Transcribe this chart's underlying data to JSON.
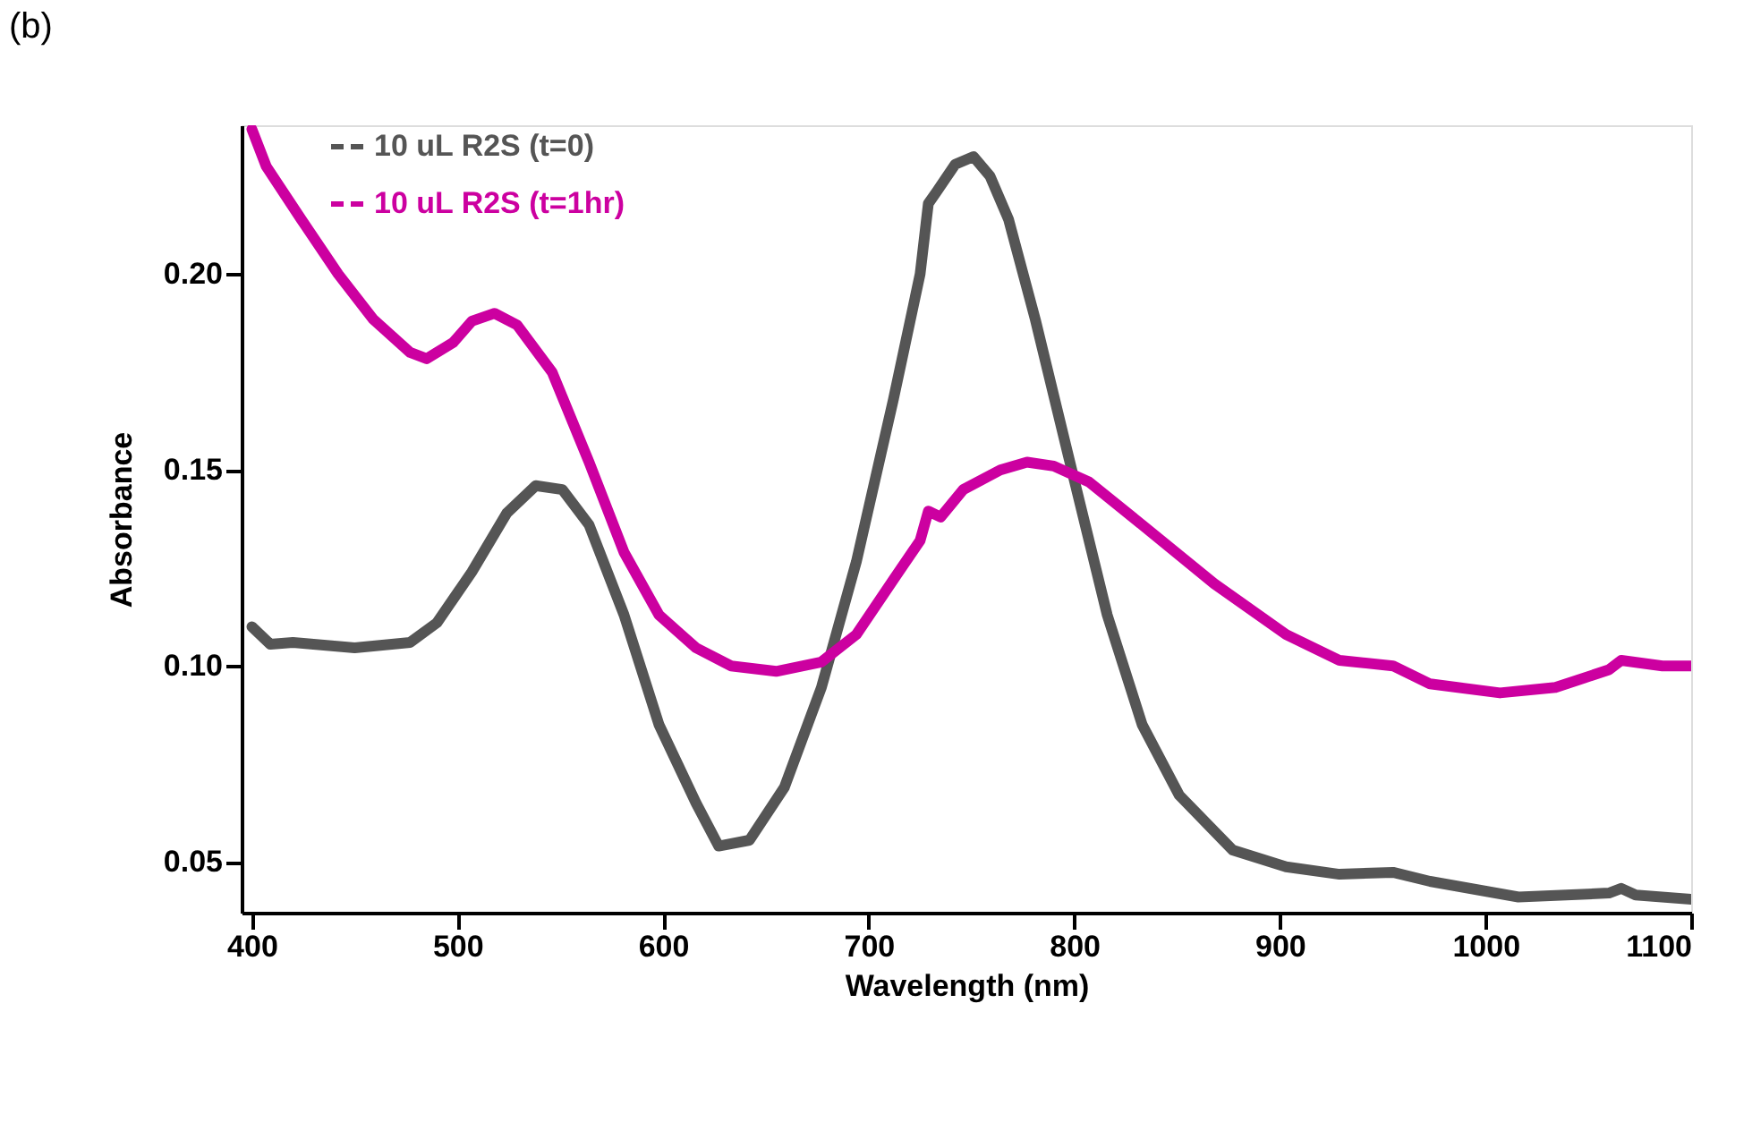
{
  "chart_data": {
    "type": "line",
    "xlabel": "Wavelength (nm)",
    "ylabel": "Absorbance",
    "annotations": [
      "(b)"
    ],
    "xlim": [
      395,
      1100
    ],
    "xticks": [
      400,
      500,
      600,
      700,
      800,
      900,
      1000,
      1100
    ],
    "ylim": [
      0.037,
      0.238
    ],
    "yticks": [
      0.05,
      {
        "value": 0.1,
        "label": "0.10"
      },
      0.15,
      {
        "value": 0.2,
        "label": "0.20"
      }
    ],
    "grid": false,
    "legend": "top left",
    "marker": "none",
    "line_style": "solid",
    "series": [
      {
        "name": "10 uL R2S (t=0)",
        "color": "#555555",
        "x": [
          400,
          409,
          420,
          450,
          477,
          490,
          507,
          524,
          538,
          551,
          564,
          581,
          598,
          616,
          627,
          642,
          659,
          677,
          694,
          712,
          725,
          729,
          733,
          742,
          751,
          759,
          768,
          781,
          799,
          816,
          833,
          851,
          877,
          903,
          929,
          955,
          973,
          1016,
          1060,
          1066,
          1073,
          1100
        ],
        "values": [
          0.11,
          0.1055,
          0.106,
          0.1046,
          0.106,
          0.111,
          0.124,
          0.139,
          0.146,
          0.145,
          0.136,
          0.113,
          0.085,
          0.065,
          0.054,
          0.0555,
          0.069,
          0.0945,
          0.1266,
          0.168,
          0.2,
          0.218,
          0.221,
          0.228,
          0.23,
          0.225,
          0.214,
          0.1885,
          0.1495,
          0.113,
          0.085,
          0.067,
          0.053,
          0.0487,
          0.0468,
          0.0473,
          0.045,
          0.041,
          0.042,
          0.0432,
          0.0415,
          0.0404
        ]
      },
      {
        "name": "10 uL R2S (t=1hr)",
        "color": "#cc00a0",
        "x": [
          400,
          407,
          424,
          442,
          459,
          477,
          485,
          498,
          507,
          518,
          529,
          546,
          564,
          581,
          598,
          616,
          633,
          655,
          677,
          694,
          712,
          725,
          729,
          735,
          746,
          764,
          777,
          790,
          807,
          833,
          868,
          903,
          929,
          955,
          973,
          1007,
          1034,
          1060,
          1066,
          1086,
          1100
        ],
        "values": [
          0.237,
          0.2275,
          0.214,
          0.2,
          0.1885,
          0.18,
          0.1784,
          0.1826,
          0.188,
          0.19,
          0.187,
          0.175,
          0.152,
          0.129,
          0.113,
          0.1046,
          0.1,
          0.0986,
          0.101,
          0.108,
          0.122,
          0.132,
          0.1395,
          0.138,
          0.145,
          0.15,
          0.152,
          0.151,
          0.147,
          0.136,
          0.121,
          0.108,
          0.1014,
          0.1,
          0.0954,
          0.0931,
          0.0945,
          0.099,
          0.1014,
          0.1,
          0.1
        ]
      }
    ]
  }
}
